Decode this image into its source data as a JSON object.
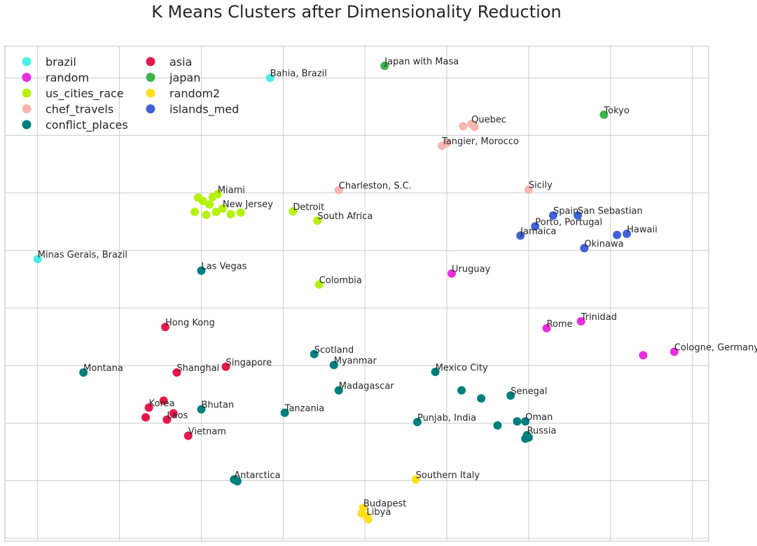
{
  "chart_data": {
    "type": "scatter",
    "title": "K Means Clusters after Dimensionality Reduction",
    "xlabel": "",
    "ylabel": "",
    "grid": true,
    "legend_position": "top-left",
    "xlim": [
      -0.2,
      4.1
    ],
    "ylim": [
      -0.05,
      8.55
    ],
    "series": [
      {
        "name": "brazil",
        "color": "#4eeee6",
        "points": [
          {
            "x": 1.42,
            "y": 8.0,
            "label": "Bahia, Brazil"
          },
          {
            "x": 0.0,
            "y": 4.85,
            "label": "Minas Gerais, Brazil"
          }
        ]
      },
      {
        "name": "random",
        "color": "#e52fde",
        "points": [
          {
            "x": 2.53,
            "y": 4.6,
            "label": "Uruguay"
          },
          {
            "x": 3.11,
            "y": 3.65,
            "label": "Rome"
          },
          {
            "x": 3.32,
            "y": 3.77,
            "label": "Trinidad"
          },
          {
            "x": 3.89,
            "y": 3.24,
            "label": "Cologne, Germany"
          },
          {
            "x": 3.7,
            "y": 3.18,
            "label": ""
          }
        ]
      },
      {
        "name": "us_cities_race",
        "color": "#b5f10e",
        "points": [
          {
            "x": 1.1,
            "y": 5.98,
            "label": "Miami"
          },
          {
            "x": 0.98,
            "y": 5.92,
            "label": ""
          },
          {
            "x": 1.01,
            "y": 5.86,
            "label": ""
          },
          {
            "x": 1.05,
            "y": 5.8,
            "label": ""
          },
          {
            "x": 1.07,
            "y": 5.93,
            "label": ""
          },
          {
            "x": 1.13,
            "y": 5.73,
            "label": "New Jersey"
          },
          {
            "x": 0.96,
            "y": 5.67,
            "label": ""
          },
          {
            "x": 1.03,
            "y": 5.62,
            "label": ""
          },
          {
            "x": 1.09,
            "y": 5.67,
            "label": ""
          },
          {
            "x": 1.18,
            "y": 5.63,
            "label": ""
          },
          {
            "x": 1.24,
            "y": 5.66,
            "label": ""
          },
          {
            "x": 1.56,
            "y": 5.68,
            "label": "Detroit"
          },
          {
            "x": 1.71,
            "y": 5.52,
            "label": "South Africa"
          },
          {
            "x": 1.72,
            "y": 4.41,
            "label": "Colombia"
          }
        ]
      },
      {
        "name": "chef_travels",
        "color": "#f7b6b0",
        "points": [
          {
            "x": 2.65,
            "y": 7.2,
            "label": "Quebec"
          },
          {
            "x": 2.6,
            "y": 7.16,
            "label": ""
          },
          {
            "x": 2.67,
            "y": 7.15,
            "label": ""
          },
          {
            "x": 2.47,
            "y": 6.82,
            "label": "Tangier, Morocco"
          },
          {
            "x": 2.5,
            "y": 6.87,
            "label": ""
          },
          {
            "x": 1.84,
            "y": 6.05,
            "label": "Charleston, S.C."
          },
          {
            "x": 3.0,
            "y": 6.06,
            "label": "Sicily"
          }
        ]
      },
      {
        "name": "conflict_places",
        "color": "#007f7f",
        "points": [
          {
            "x": 1.0,
            "y": 4.65,
            "label": "Las Vegas"
          },
          {
            "x": 1.69,
            "y": 3.2,
            "label": "Scotland"
          },
          {
            "x": 0.28,
            "y": 2.88,
            "label": "Montana"
          },
          {
            "x": 1.81,
            "y": 3.01,
            "label": "Myanmar"
          },
          {
            "x": 2.43,
            "y": 2.89,
            "label": "Mexico City"
          },
          {
            "x": 1.84,
            "y": 2.57,
            "label": "Madagascar"
          },
          {
            "x": 1.0,
            "y": 2.24,
            "label": "Bhutan"
          },
          {
            "x": 1.51,
            "y": 2.18,
            "label": "Tanzania"
          },
          {
            "x": 2.32,
            "y": 2.02,
            "label": "Punjab, India"
          },
          {
            "x": 2.59,
            "y": 2.57,
            "label": ""
          },
          {
            "x": 2.71,
            "y": 2.43,
            "label": ""
          },
          {
            "x": 2.89,
            "y": 2.48,
            "label": "Senegal"
          },
          {
            "x": 2.81,
            "y": 1.96,
            "label": ""
          },
          {
            "x": 2.93,
            "y": 2.03,
            "label": ""
          },
          {
            "x": 2.98,
            "y": 2.03,
            "label": "Oman"
          },
          {
            "x": 2.99,
            "y": 1.79,
            "label": "Russia"
          },
          {
            "x": 3.0,
            "y": 1.75,
            "label": ""
          },
          {
            "x": 2.98,
            "y": 1.73,
            "label": ""
          },
          {
            "x": 1.2,
            "y": 1.02,
            "label": "Antarctica"
          },
          {
            "x": 1.22,
            "y": 0.99,
            "label": ""
          }
        ]
      },
      {
        "name": "asia",
        "color": "#e8174b",
        "points": [
          {
            "x": 0.78,
            "y": 3.67,
            "label": "Hong Kong"
          },
          {
            "x": 1.15,
            "y": 2.98,
            "label": "Singapore"
          },
          {
            "x": 0.85,
            "y": 2.88,
            "label": "Shanghai"
          },
          {
            "x": 0.77,
            "y": 2.39,
            "label": ""
          },
          {
            "x": 0.68,
            "y": 2.27,
            "label": "Korea"
          },
          {
            "x": 0.83,
            "y": 2.17,
            "label": ""
          },
          {
            "x": 0.66,
            "y": 2.1,
            "label": ""
          },
          {
            "x": 0.79,
            "y": 2.06,
            "label": "Laos"
          },
          {
            "x": 0.92,
            "y": 1.78,
            "label": "Vietnam"
          }
        ]
      },
      {
        "name": "japan",
        "color": "#3fb449",
        "points": [
          {
            "x": 2.12,
            "y": 8.21,
            "label": "Japan with Masa"
          },
          {
            "x": 3.46,
            "y": 7.36,
            "label": "Tokyo"
          }
        ]
      },
      {
        "name": "random2",
        "color": "#ffe01b",
        "points": [
          {
            "x": 2.31,
            "y": 1.02,
            "label": "Southern Italy"
          },
          {
            "x": 1.99,
            "y": 0.53,
            "label": "Budapest"
          },
          {
            "x": 1.98,
            "y": 0.43,
            "label": ""
          },
          {
            "x": 2.01,
            "y": 0.38,
            "label": "Libya"
          },
          {
            "x": 2.02,
            "y": 0.33,
            "label": ""
          }
        ]
      },
      {
        "name": "islands_med",
        "color": "#4261d9",
        "points": [
          {
            "x": 3.15,
            "y": 5.61,
            "label": "Spain"
          },
          {
            "x": 3.3,
            "y": 5.61,
            "label": "San Sebastian"
          },
          {
            "x": 3.04,
            "y": 5.42,
            "label": "Porto, Portugal"
          },
          {
            "x": 2.95,
            "y": 5.26,
            "label": "Jamaica"
          },
          {
            "x": 3.54,
            "y": 5.27,
            "label": ""
          },
          {
            "x": 3.6,
            "y": 5.29,
            "label": "Hawaii"
          },
          {
            "x": 3.34,
            "y": 5.04,
            "label": "Okinawa"
          }
        ]
      }
    ]
  }
}
